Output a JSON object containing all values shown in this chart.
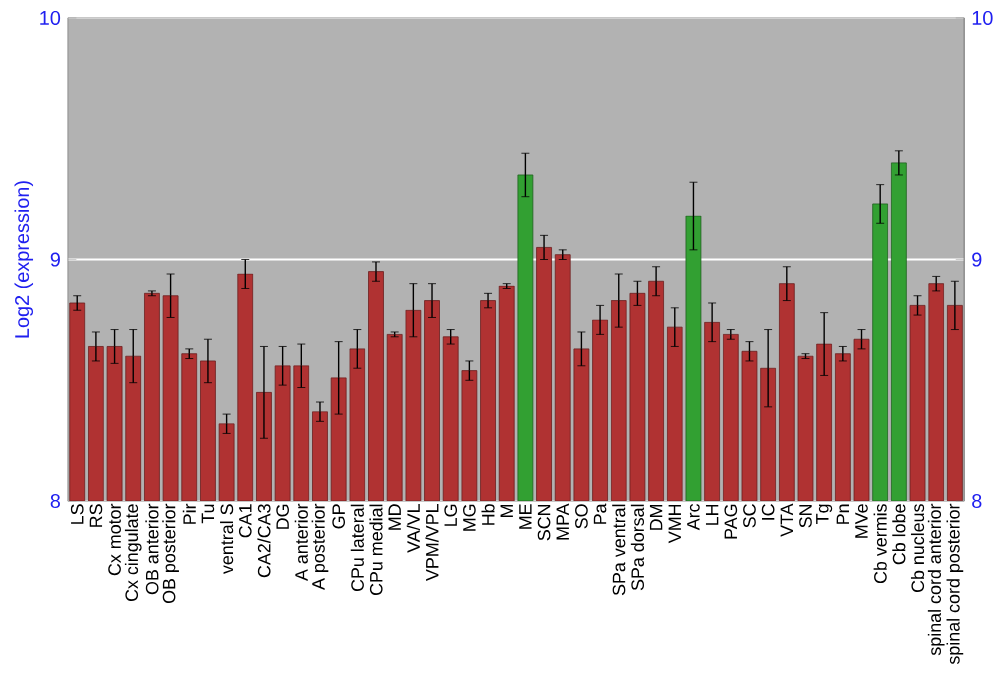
{
  "chart_data": {
    "type": "bar",
    "ylabel": "Log2 (expression)",
    "categories": [
      "LS",
      "RS",
      "Cx motor",
      "Cx cingulate",
      "OB anterior",
      "OB posterior",
      "Pir",
      "Tu",
      "ventral S",
      "CA1",
      "CA2/CA3",
      "DG",
      "A anterior",
      "A posterior",
      "GP",
      "CPu lateral",
      "CPu medial",
      "MD",
      "VA/VL",
      "VPM/VPL",
      "LG",
      "MG",
      "Hb",
      "M",
      "ME",
      "SCN",
      "MPA",
      "SO",
      "Pa",
      "SPa ventral",
      "SPa dorsal",
      "DM",
      "VMH",
      "Arc",
      "LH",
      "PAG",
      "SC",
      "IC",
      "VTA",
      "SN",
      "Tg",
      "Pn",
      "MVe",
      "Cb vermis",
      "Cb lobe",
      "Cb nucleus",
      "spinal cord anterior",
      "spinal cord posterior"
    ],
    "values": [
      8.82,
      8.64,
      8.64,
      8.6,
      8.86,
      8.85,
      8.61,
      8.58,
      8.32,
      8.94,
      8.45,
      8.56,
      8.56,
      8.37,
      8.51,
      8.63,
      8.95,
      8.69,
      8.79,
      8.83,
      8.68,
      8.54,
      8.83,
      8.89,
      9.35,
      9.05,
      9.02,
      8.63,
      8.75,
      8.83,
      8.86,
      8.91,
      8.72,
      9.18,
      8.74,
      8.69,
      8.62,
      8.55,
      8.9,
      8.6,
      8.65,
      8.61,
      8.67,
      9.23,
      9.4,
      8.81,
      8.9,
      8.81
    ],
    "errors": [
      0.03,
      0.06,
      0.07,
      0.11,
      0.01,
      0.09,
      0.02,
      0.09,
      0.04,
      0.06,
      0.19,
      0.08,
      0.09,
      0.04,
      0.15,
      0.08,
      0.04,
      0.01,
      0.11,
      0.07,
      0.03,
      0.04,
      0.03,
      0.01,
      0.09,
      0.05,
      0.02,
      0.07,
      0.06,
      0.11,
      0.05,
      0.06,
      0.08,
      0.14,
      0.08,
      0.02,
      0.04,
      0.16,
      0.07,
      0.01,
      0.13,
      0.03,
      0.04,
      0.08,
      0.05,
      0.04,
      0.03,
      0.1
    ],
    "colors": [
      "#b03232",
      "#b03232",
      "#b03232",
      "#b03232",
      "#b03232",
      "#b03232",
      "#b03232",
      "#b03232",
      "#b03232",
      "#b03232",
      "#b03232",
      "#b03232",
      "#b03232",
      "#b03232",
      "#b03232",
      "#b03232",
      "#b03232",
      "#b03232",
      "#b03232",
      "#b03232",
      "#b03232",
      "#b03232",
      "#b03232",
      "#b03232",
      "#32a032",
      "#b03232",
      "#b03232",
      "#b03232",
      "#b03232",
      "#b03232",
      "#b03232",
      "#b03232",
      "#b03232",
      "#32a032",
      "#b03232",
      "#b03232",
      "#b03232",
      "#b03232",
      "#b03232",
      "#b03232",
      "#b03232",
      "#b03232",
      "#b03232",
      "#32a032",
      "#32a032",
      "#b03232",
      "#b03232",
      "#b03232"
    ],
    "ylim": [
      8,
      10
    ],
    "yticks": [
      8,
      9,
      10
    ],
    "y2lim": [
      8,
      10
    ],
    "y2ticks": [
      8,
      9,
      10
    ],
    "grid": "y"
  }
}
